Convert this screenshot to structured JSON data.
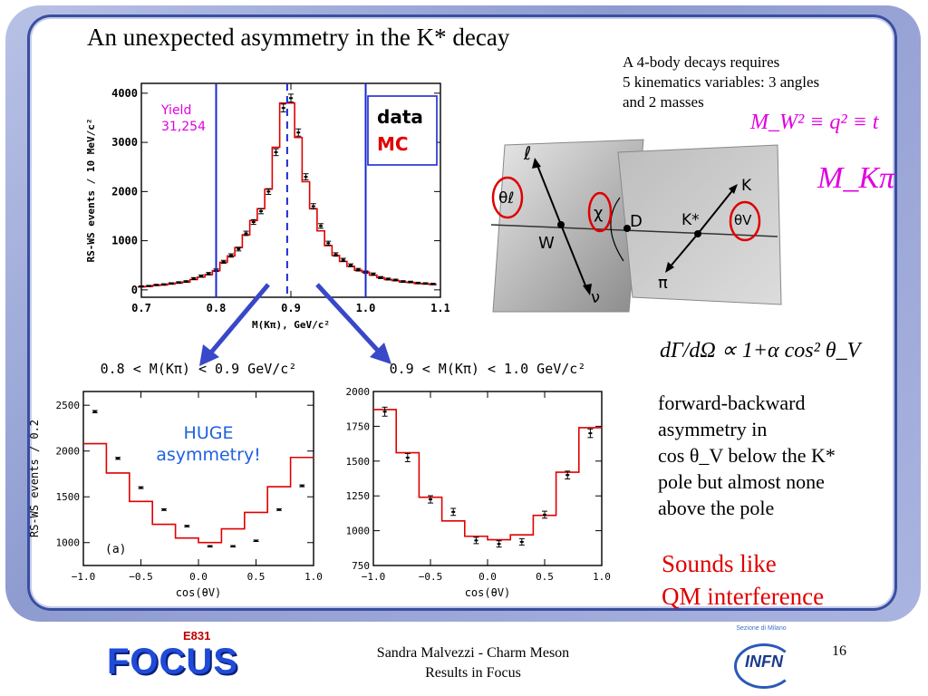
{
  "slide": {
    "title": "An unexpected asymmetry in the K* decay",
    "req_lines": [
      "A 4-body decays requires",
      "5 kinematics variables: 3 angles",
      "and 2 masses"
    ],
    "formula_mw": "M_W² ≡ q² ≡ t",
    "formula_mkpi": "M_Kπ",
    "decay_formula": "dΓ/dΩ ∝ 1+α cos² θ_V",
    "body_lines": [
      "forward-backward",
      "asymmetry in",
      "cos θ_V  below the K*",
      "pole but almost none",
      "above the pole"
    ],
    "red_lines": [
      "Sounds like",
      "QM interference"
    ],
    "footer_lines": [
      "Sandra Malvezzi - Charm Meson",
      "Results  in Focus"
    ],
    "page_number": "16",
    "logos": {
      "focus": "FOCUS",
      "e831": "E831",
      "infn": "INFN",
      "infn_sub": "Sezione di Milano"
    }
  },
  "diagram": {
    "labels": {
      "ell": "ℓ",
      "theta_l": "θℓ",
      "chi": "χ",
      "D": "D",
      "W": "W",
      "nu": "ν",
      "Kstar": "K*",
      "K": "K",
      "theta_v": "θV",
      "pi": "π"
    }
  },
  "chart_data": [
    {
      "type": "bar",
      "title": "",
      "xlabel": "M(Kπ), GeV/c²",
      "ylabel": "RS-WS events / 10 MeV/c²",
      "xlim": [
        0.7,
        1.1
      ],
      "ylim": [
        -150,
        4200
      ],
      "xticks": [
        "0.7",
        "0.8",
        "0.9",
        "1.0",
        "1.1"
      ],
      "yticks": [
        "0",
        "1000",
        "2000",
        "3000",
        "4000"
      ],
      "legend": [
        "data",
        "MC"
      ],
      "legend_colors": [
        "#000000",
        "#e00000"
      ],
      "annotation": "Yield\n31,254",
      "annotation_color": "#e000e0",
      "vlines": [
        0.8,
        1.0
      ],
      "dashed_vline": 0.895,
      "x": [
        0.7,
        0.71,
        0.72,
        0.73,
        0.74,
        0.75,
        0.76,
        0.77,
        0.78,
        0.79,
        0.8,
        0.81,
        0.82,
        0.83,
        0.84,
        0.85,
        0.86,
        0.87,
        0.88,
        0.89,
        0.9,
        0.91,
        0.92,
        0.93,
        0.94,
        0.95,
        0.96,
        0.97,
        0.98,
        0.99,
        1.0,
        1.01,
        1.02,
        1.03,
        1.04,
        1.05,
        1.06,
        1.07,
        1.08,
        1.09
      ],
      "series": [
        {
          "name": "data",
          "values": [
            70,
            80,
            100,
            110,
            130,
            150,
            170,
            230,
            280,
            330,
            400,
            570,
            700,
            830,
            1150,
            1380,
            1600,
            2000,
            2800,
            3700,
            3900,
            3200,
            2300,
            1700,
            1300,
            950,
            720,
            610,
            500,
            410,
            360,
            320,
            250,
            220,
            200,
            170,
            160,
            140,
            130,
            120
          ]
        },
        {
          "name": "MC",
          "values": [
            60,
            70,
            90,
            100,
            120,
            140,
            160,
            210,
            260,
            310,
            390,
            560,
            690,
            860,
            1120,
            1410,
            1650,
            2050,
            2900,
            3800,
            3800,
            3100,
            2200,
            1650,
            1200,
            900,
            700,
            580,
            480,
            400,
            360,
            300,
            250,
            210,
            190,
            160,
            150,
            130,
            120,
            110
          ]
        }
      ]
    },
    {
      "type": "bar",
      "title": "0.8 < M(Kπ) < 0.9 GeV/c²",
      "xlabel": "cos(θV)",
      "ylabel": "RS-WS events / 0.2",
      "xlim": [
        -1.0,
        1.0
      ],
      "ylim": [
        750,
        2650
      ],
      "xticks": [
        "-1.0",
        "-0.5",
        "0.0",
        "0.5",
        "1.0"
      ],
      "yticks": [
        "1000",
        "1500",
        "2000",
        "2500"
      ],
      "panel_label": "(a)",
      "annotation": "HUGE\nasymmetry!",
      "annotation_color": "#2060e0",
      "x": [
        -0.9,
        -0.7,
        -0.5,
        -0.3,
        -0.1,
        0.1,
        0.3,
        0.5,
        0.7,
        0.9
      ],
      "series": [
        {
          "name": "data",
          "values": [
            2430,
            1920,
            1600,
            1360,
            1180,
            960,
            960,
            1020,
            1360,
            1620
          ]
        },
        {
          "name": "MC",
          "values": [
            2080,
            1760,
            1450,
            1200,
            1050,
            1000,
            1150,
            1330,
            1610,
            1930
          ]
        }
      ]
    },
    {
      "type": "bar",
      "title": "0.9 < M(Kπ) < 1.0 GeV/c²",
      "xlabel": "cos(θV)",
      "ylabel": "",
      "xlim": [
        -1.0,
        1.0
      ],
      "ylim": [
        750,
        2000
      ],
      "xticks": [
        "-1.0",
        "-0.5",
        "0.0",
        "0.5",
        "1.0"
      ],
      "yticks": [
        "750",
        "1000",
        "1250",
        "1500",
        "1750",
        "2000"
      ],
      "x": [
        -0.9,
        -0.7,
        -0.5,
        -0.3,
        -0.1,
        0.1,
        0.3,
        0.5,
        0.7,
        0.9
      ],
      "series": [
        {
          "name": "data",
          "values": [
            1855,
            1525,
            1225,
            1135,
            930,
            905,
            920,
            1115,
            1400,
            1700
          ]
        },
        {
          "name": "MC",
          "values": [
            1870,
            1560,
            1240,
            1070,
            960,
            935,
            970,
            1110,
            1420,
            1740
          ]
        }
      ]
    }
  ]
}
